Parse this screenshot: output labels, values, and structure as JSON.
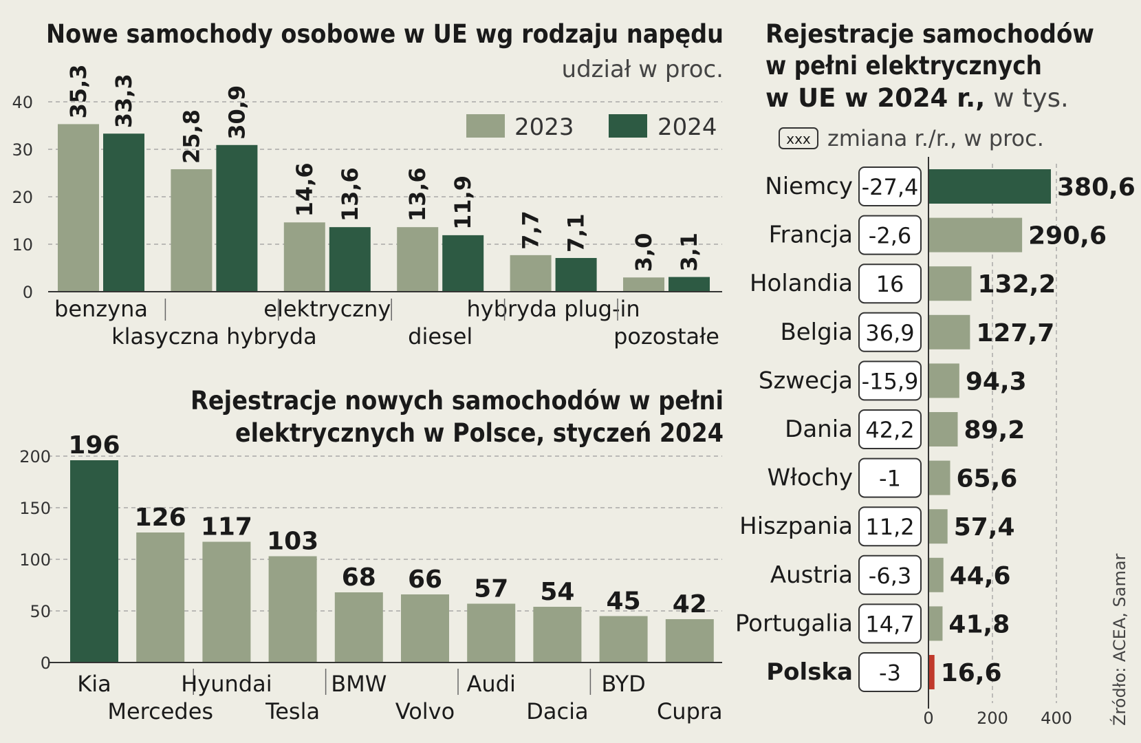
{
  "colors": {
    "bg": "#eeede4",
    "light": "#97a287",
    "dark": "#2d5a43",
    "red": "#c0392b",
    "text": "#1a1a1a",
    "grid": "#9a9a9a"
  },
  "chart_data": [
    {
      "id": "fuel",
      "type": "bar",
      "title": "Nowe samochody osobowe w UE wg rodzaju napędu",
      "subtitle": "udział w proc.",
      "categories": [
        "benzyna",
        "klasyczna hybryda",
        "elektryczny",
        "diesel",
        "hybryda plug-in",
        "pozostałe"
      ],
      "series": [
        {
          "name": "2023",
          "values": [
            35.3,
            25.8,
            14.6,
            13.6,
            7.7,
            3.0
          ],
          "labels": [
            "35,3",
            "25,8",
            "14,6",
            "13,6",
            "7,7",
            "3,0"
          ]
        },
        {
          "name": "2024",
          "values": [
            33.3,
            30.9,
            13.6,
            11.9,
            7.1,
            3.1
          ],
          "labels": [
            "33,3",
            "30,9",
            "13,6",
            "11,9",
            "7,1",
            "3,1"
          ]
        }
      ],
      "ylim": [
        0,
        40
      ],
      "yticks": [
        "0",
        "10",
        "20",
        "30",
        "40"
      ],
      "legend_position": "top-right"
    },
    {
      "id": "poland",
      "type": "bar",
      "title_lines": [
        "Rejestracje nowych samochodów w pełni",
        "elektrycznych w Polsce, styczeń 2024"
      ],
      "categories": [
        "Kia",
        "Mercedes",
        "Hyundai",
        "Tesla",
        "BMW",
        "Volvo",
        "Audi",
        "Dacia",
        "BYD",
        "Cupra"
      ],
      "values": [
        196,
        126,
        117,
        103,
        68,
        66,
        57,
        54,
        45,
        42
      ],
      "labels": [
        "196",
        "126",
        "117",
        "103",
        "68",
        "66",
        "57",
        "54",
        "45",
        "42"
      ],
      "ylim": [
        0,
        200
      ],
      "yticks": [
        "0",
        "50",
        "100",
        "150",
        "200"
      ]
    },
    {
      "id": "eu-bev",
      "type": "bar",
      "orientation": "horizontal",
      "title_lines": [
        "Rejestracje samochodów",
        "w pełni elektrycznych"
      ],
      "title_line3_bold": "w UE w 2024 r.,",
      "title_line3_light": "w tys.",
      "legend_box": "xxx",
      "legend_text": "zmiana r./r., w proc.",
      "categories": [
        "Niemcy",
        "Francja",
        "Holandia",
        "Belgia",
        "Szwecja",
        "Dania",
        "Włochy",
        "Hiszpania",
        "Austria",
        "Portugalia",
        "Polska"
      ],
      "values": [
        380.6,
        290.6,
        132.2,
        127.7,
        94.3,
        89.2,
        65.6,
        57.4,
        44.6,
        41.8,
        16.6
      ],
      "labels": [
        "380,6",
        "290,6",
        "132,2",
        "127,7",
        "94,3",
        "89,2",
        "65,6",
        "57,4",
        "44,6",
        "41,8",
        "16,6"
      ],
      "changes": [
        "-27,4",
        "-2,6",
        "16",
        "36,9",
        "-15,9",
        "42,2",
        "-1",
        "11,2",
        "-6,3",
        "14,7",
        "-3"
      ],
      "xlim": [
        0,
        400
      ],
      "xticks": [
        "0",
        "200",
        "400"
      ]
    }
  ],
  "source": "Źródło: ACEA, Samar"
}
